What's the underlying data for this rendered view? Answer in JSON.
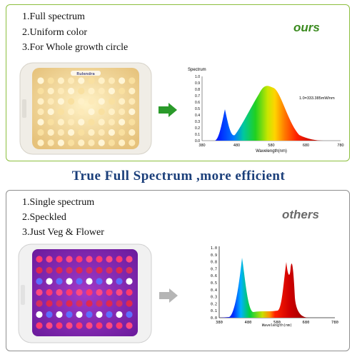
{
  "top_panel": {
    "features": [
      "1.Full spectrum",
      "2.Uniform color",
      "3.For Whole growth circle"
    ],
    "tag": "ours",
    "tag_color": "#3a8a1e",
    "brand_logo": "Rulendra",
    "spectrum": {
      "label": "Spectrum",
      "y_ticks": [
        "1.0",
        "0.9",
        "0.8",
        "0.7",
        "0.6",
        "0.5",
        "0.4",
        "0.3",
        "0.2",
        "0.1",
        "0.0"
      ],
      "x_ticks": [
        "380",
        "480",
        "580",
        "680",
        "780"
      ],
      "xlabel": "Wavelength(nm)",
      "annotation": "1.0=333.385mW/nm"
    }
  },
  "headline": "True Full Spectrum ,more efficient",
  "bottom_panel": {
    "features": [
      "1.Single spectrum",
      "2.Speckled",
      "3.Just Veg & Flower"
    ],
    "tag": "others",
    "tag_color": "#6a6a6a",
    "spectrum": {
      "y_ticks": [
        "1.0",
        "0.9",
        "0.8",
        "0.7",
        "0.6",
        "0.5",
        "0.4",
        "0.3",
        "0.2",
        "0.1",
        "0.0"
      ],
      "x_ticks": [
        "380",
        "480",
        "580",
        "680",
        "780"
      ],
      "xlabel": "Wavelength(nm)"
    }
  },
  "colors": {
    "top_border": "#8cbf3f",
    "bottom_border": "#8f8f8f",
    "headline": "#1b3f7a",
    "green_arrow": "#2a9a2a",
    "gray_arrow": "#b5b5b5"
  }
}
